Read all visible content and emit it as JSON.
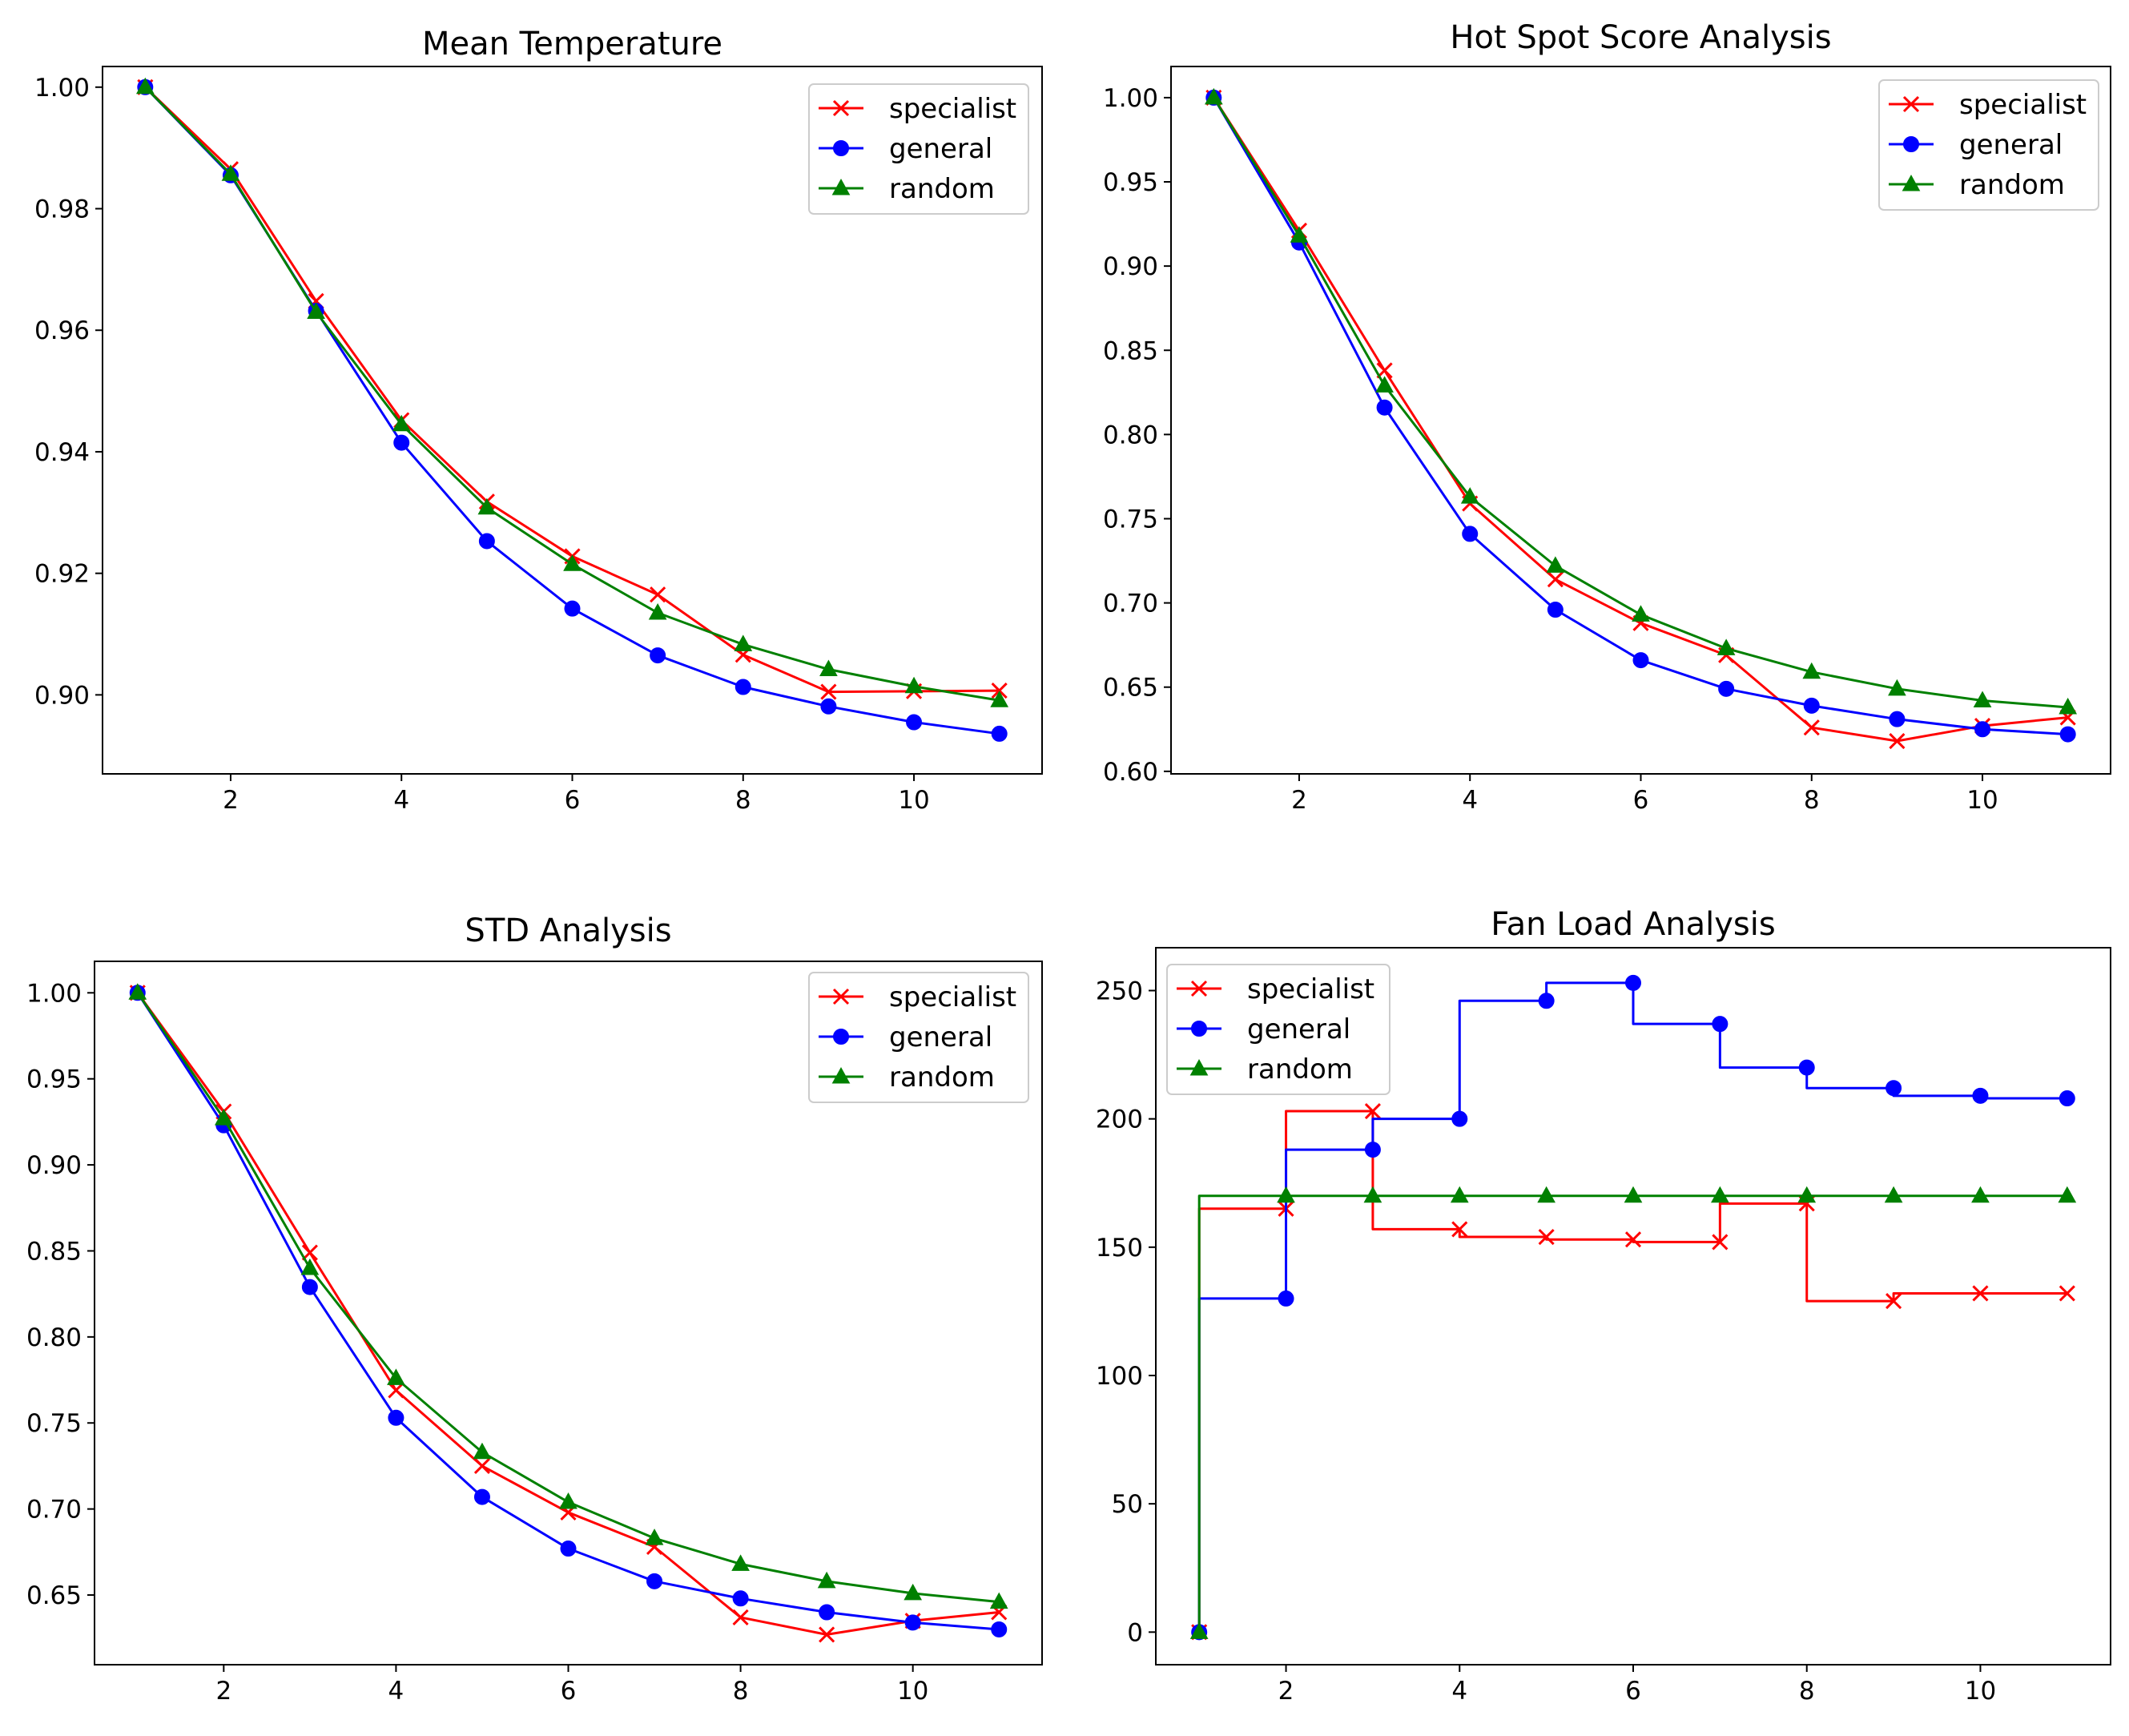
{
  "chart_data": [
    {
      "id": "mean-temperature",
      "type": "line",
      "title": "Mean Temperature",
      "xlabel": "",
      "ylabel": "",
      "xlim": [
        0.5,
        11.5
      ],
      "ylim": [
        0.887,
        1.0034
      ],
      "xticks": [
        2,
        4,
        6,
        8,
        10
      ],
      "yticks": [
        0.9,
        0.92,
        0.94,
        0.96,
        0.98,
        1.0
      ],
      "ytick_labels": [
        "0.90",
        "0.92",
        "0.94",
        "0.96",
        "0.98",
        "1.00"
      ],
      "legend": "top-right",
      "x": [
        1,
        2,
        3,
        4,
        5,
        6,
        7,
        8,
        9,
        10,
        11
      ],
      "series": [
        {
          "name": "specialist",
          "color": "#ff0000",
          "marker": "x",
          "values": [
            1.0,
            0.9865,
            0.9648,
            0.9452,
            0.9318,
            0.9228,
            0.9165,
            0.9066,
            0.9005,
            0.9006,
            0.9007
          ]
        },
        {
          "name": "general",
          "color": "#0000ff",
          "marker": "o",
          "values": [
            1.0,
            0.9855,
            0.9632,
            0.9415,
            0.9253,
            0.9142,
            0.9065,
            0.9013,
            0.8981,
            0.8955,
            0.8936
          ]
        },
        {
          "name": "random",
          "color": "#008000",
          "marker": "^",
          "values": [
            1.0,
            0.9857,
            0.963,
            0.9445,
            0.9308,
            0.9215,
            0.9135,
            0.9083,
            0.9042,
            0.9014,
            0.8991
          ]
        }
      ]
    },
    {
      "id": "hot-spot-score",
      "type": "line",
      "title": "Hot Spot Score Analysis",
      "xlabel": "",
      "ylabel": "",
      "xlim": [
        0.5,
        11.5
      ],
      "ylim": [
        0.5985,
        1.0185
      ],
      "xticks": [
        2,
        4,
        6,
        8,
        10
      ],
      "yticks": [
        0.6,
        0.65,
        0.7,
        0.75,
        0.8,
        0.85,
        0.9,
        0.95,
        1.0
      ],
      "ytick_labels": [
        "0.60",
        "0.65",
        "0.70",
        "0.75",
        "0.80",
        "0.85",
        "0.90",
        "0.95",
        "1.00"
      ],
      "legend": "top-right",
      "x": [
        1,
        2,
        3,
        4,
        5,
        6,
        7,
        8,
        9,
        10,
        11
      ],
      "series": [
        {
          "name": "specialist",
          "color": "#ff0000",
          "marker": "x",
          "values": [
            1.0,
            0.921,
            0.838,
            0.759,
            0.714,
            0.688,
            0.669,
            0.626,
            0.618,
            0.627,
            0.632
          ]
        },
        {
          "name": "general",
          "color": "#0000ff",
          "marker": "o",
          "values": [
            1.0,
            0.914,
            0.816,
            0.741,
            0.696,
            0.666,
            0.649,
            0.639,
            0.631,
            0.625,
            0.622
          ]
        },
        {
          "name": "random",
          "color": "#008000",
          "marker": "^",
          "values": [
            1.0,
            0.918,
            0.829,
            0.763,
            0.722,
            0.693,
            0.673,
            0.659,
            0.649,
            0.642,
            0.638
          ]
        }
      ]
    },
    {
      "id": "std-analysis",
      "type": "line",
      "title": "STD Analysis",
      "xlabel": "",
      "ylabel": "",
      "xlim": [
        0.5,
        11.5
      ],
      "ylim": [
        0.6095,
        1.0183
      ],
      "xticks": [
        2,
        4,
        6,
        8,
        10
      ],
      "yticks": [
        0.65,
        0.7,
        0.75,
        0.8,
        0.85,
        0.9,
        0.95,
        1.0
      ],
      "ytick_labels": [
        "0.65",
        "0.70",
        "0.75",
        "0.80",
        "0.85",
        "0.90",
        "0.95",
        "1.00"
      ],
      "legend": "top-right",
      "x": [
        1,
        2,
        3,
        4,
        5,
        6,
        7,
        8,
        9,
        10,
        11
      ],
      "series": [
        {
          "name": "specialist",
          "color": "#ff0000",
          "marker": "x",
          "values": [
            1.0,
            0.931,
            0.849,
            0.769,
            0.725,
            0.698,
            0.678,
            0.637,
            0.627,
            0.635,
            0.64
          ]
        },
        {
          "name": "general",
          "color": "#0000ff",
          "marker": "o",
          "values": [
            1.0,
            0.923,
            0.829,
            0.753,
            0.707,
            0.677,
            0.658,
            0.648,
            0.64,
            0.634,
            0.63
          ]
        },
        {
          "name": "random",
          "color": "#008000",
          "marker": "^",
          "values": [
            1.0,
            0.927,
            0.84,
            0.776,
            0.733,
            0.704,
            0.683,
            0.668,
            0.658,
            0.651,
            0.646
          ]
        }
      ]
    },
    {
      "id": "fan-load",
      "type": "line",
      "title": "Fan Load Analysis",
      "xlabel": "",
      "ylabel": "",
      "xlim": [
        0.5,
        11.5
      ],
      "ylim": [
        -12.7,
        266.7
      ],
      "xticks": [
        2,
        4,
        6,
        8,
        10
      ],
      "yticks": [
        0,
        50,
        100,
        150,
        200,
        250
      ],
      "ytick_labels": [
        "0",
        "50",
        "100",
        "150",
        "200",
        "250"
      ],
      "legend": "top-left",
      "drawstyle": "steps-pre",
      "x": [
        1,
        2,
        3,
        4,
        5,
        6,
        7,
        8,
        9,
        10,
        11
      ],
      "series": [
        {
          "name": "specialist",
          "color": "#ff0000",
          "marker": "x",
          "values": [
            0,
            165,
            203,
            157,
            154,
            153,
            152,
            167,
            129,
            132,
            132
          ]
        },
        {
          "name": "general",
          "color": "#0000ff",
          "marker": "o",
          "values": [
            0,
            130,
            188,
            200,
            246,
            253,
            237,
            220,
            212,
            209,
            208
          ]
        },
        {
          "name": "random",
          "color": "#008000",
          "marker": "^",
          "values": [
            0,
            170,
            170,
            170,
            170,
            170,
            170,
            170,
            170,
            170,
            170
          ]
        }
      ]
    }
  ]
}
